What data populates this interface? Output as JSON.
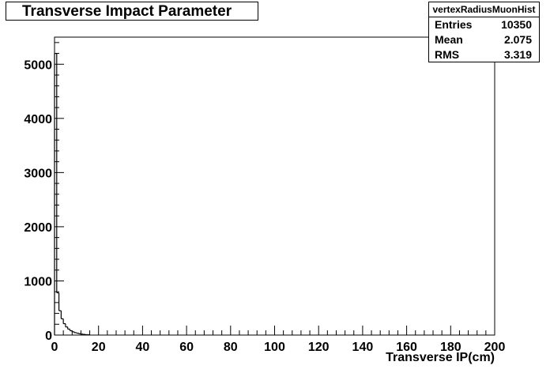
{
  "chart_data": {
    "type": "histogram",
    "title": "Transverse Impact Parameter",
    "xlabel": "Transverse IP(cm)",
    "ylabel": "",
    "xlim": [
      0,
      200
    ],
    "ylim": [
      0,
      5500
    ],
    "x_ticks": [
      0,
      20,
      40,
      60,
      80,
      100,
      120,
      140,
      160,
      180,
      200
    ],
    "y_ticks": [
      0,
      1000,
      2000,
      3000,
      4000,
      5000
    ],
    "bin_width": 1,
    "bins": [
      {
        "x": 0,
        "value": 5200
      },
      {
        "x": 1,
        "value": 780
      },
      {
        "x": 2,
        "value": 450
      },
      {
        "x": 3,
        "value": 300
      },
      {
        "x": 4,
        "value": 210
      },
      {
        "x": 5,
        "value": 150
      },
      {
        "x": 6,
        "value": 110
      },
      {
        "x": 7,
        "value": 80
      },
      {
        "x": 8,
        "value": 60
      },
      {
        "x": 9,
        "value": 45
      },
      {
        "x": 10,
        "value": 35
      },
      {
        "x": 11,
        "value": 25
      },
      {
        "x": 12,
        "value": 18
      },
      {
        "x": 13,
        "value": 12
      },
      {
        "x": 14,
        "value": 8
      },
      {
        "x": 15,
        "value": 5
      }
    ],
    "stats": {
      "name": "vertexRadiusMuonHist",
      "entries_label": "Entries",
      "entries": "10350",
      "mean_label": "Mean",
      "mean": "2.075",
      "rms_label": "RMS",
      "rms": "3.319"
    },
    "grid": false,
    "legend": "top-right stats box"
  }
}
